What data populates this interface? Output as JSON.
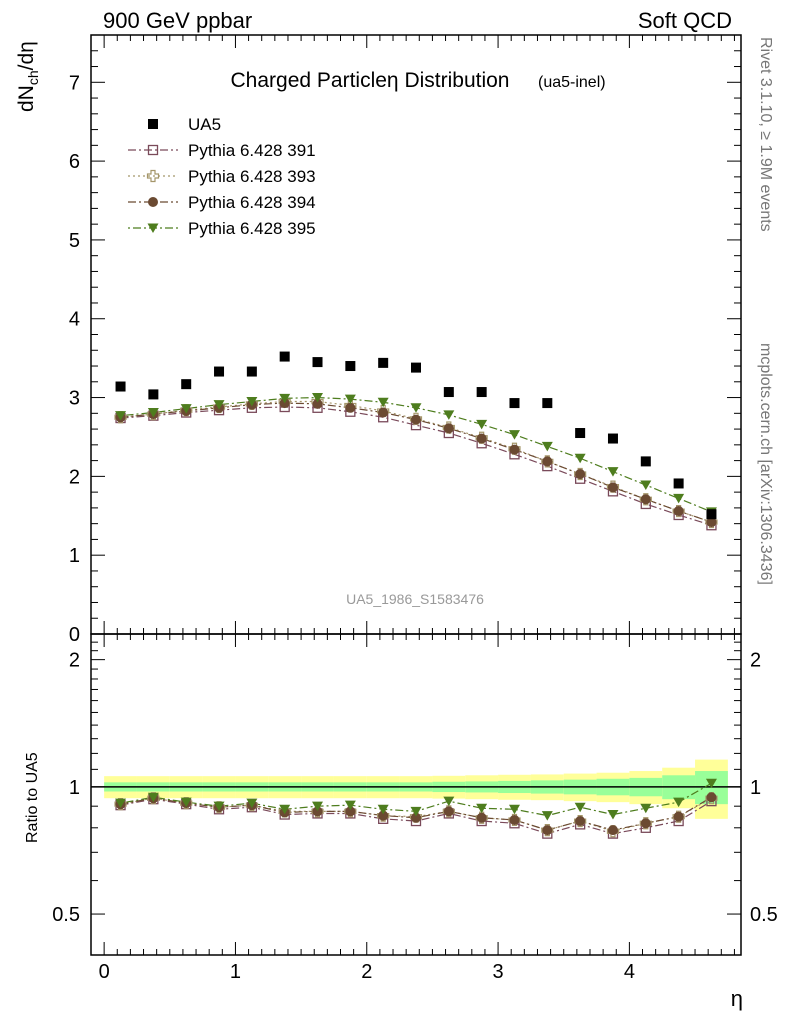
{
  "header": {
    "left": "900 GeV ppbar",
    "right": "Soft QCD"
  },
  "side": {
    "top": "Rivet 3.1.10, ≥ 1.9M events",
    "bottom": "mcplots.cern.ch [arXiv:1306.3436]"
  },
  "chart_data": {
    "type": "scatter",
    "title": "Charged Particleη Distribution",
    "subtitle": "(ua5-inel)",
    "watermark": "UA5_1986_S1583476",
    "xlabel": "η",
    "ylabel_main": "dN_ch/dη",
    "ylabel_ratio": "Ratio to UA5",
    "xlim": [
      -0.1,
      4.85
    ],
    "ylim_main": [
      0,
      7.6
    ],
    "ylim_ratio": [
      0.4,
      2.3
    ],
    "ratio_log_scale": true,
    "x_ticks": [
      "0",
      "1",
      "2",
      "3",
      "4"
    ],
    "y_ticks_main": [
      "0",
      "1",
      "2",
      "3",
      "4",
      "5",
      "6",
      "7"
    ],
    "y_ticks_ratio": [
      "0.5",
      "1",
      "2"
    ],
    "legend_position": "top-left",
    "x": [
      0.125,
      0.375,
      0.625,
      0.875,
      1.125,
      1.375,
      1.625,
      1.875,
      2.125,
      2.375,
      2.625,
      2.875,
      3.125,
      3.375,
      3.625,
      3.875,
      4.125,
      4.375,
      4.625
    ],
    "data_series": {
      "name": "UA5",
      "color": "#000000",
      "values": [
        3.14,
        3.04,
        3.17,
        3.33,
        3.33,
        3.52,
        3.45,
        3.4,
        3.44,
        3.38,
        3.07,
        3.07,
        2.93,
        2.93,
        2.55,
        2.48,
        2.19,
        1.91,
        1.52
      ]
    },
    "series": [
      {
        "name": "Pythia 6.428 391",
        "color": "#7a4a5a",
        "marker": "open-square",
        "values": [
          2.74,
          2.77,
          2.81,
          2.84,
          2.87,
          2.88,
          2.87,
          2.82,
          2.75,
          2.65,
          2.55,
          2.42,
          2.28,
          2.13,
          1.97,
          1.81,
          1.65,
          1.51,
          1.38
        ],
        "ratio": [
          0.905,
          0.935,
          0.91,
          0.885,
          0.895,
          0.86,
          0.865,
          0.865,
          0.84,
          0.83,
          0.865,
          0.83,
          0.82,
          0.775,
          0.815,
          0.775,
          0.8,
          0.83,
          0.925
        ]
      },
      {
        "name": "Pythia 6.428 393",
        "color": "#a5966a",
        "marker": "open-cross",
        "values": [
          2.75,
          2.79,
          2.84,
          2.88,
          2.92,
          2.95,
          2.95,
          2.9,
          2.83,
          2.73,
          2.62,
          2.49,
          2.35,
          2.19,
          2.03,
          1.87,
          1.71,
          1.56,
          1.42
        ],
        "ratio": [
          0.91,
          0.94,
          0.915,
          0.895,
          0.905,
          0.875,
          0.875,
          0.875,
          0.855,
          0.85,
          0.875,
          0.845,
          0.835,
          0.79,
          0.83,
          0.785,
          0.82,
          0.85,
          0.94
        ]
      },
      {
        "name": "Pythia 6.428 394",
        "color": "#6b4a32",
        "marker": "filled-circle",
        "values": [
          2.75,
          2.79,
          2.83,
          2.87,
          2.91,
          2.93,
          2.92,
          2.87,
          2.81,
          2.72,
          2.61,
          2.48,
          2.34,
          2.19,
          2.03,
          1.86,
          1.71,
          1.56,
          1.42
        ],
        "ratio": [
          0.91,
          0.94,
          0.915,
          0.895,
          0.905,
          0.87,
          0.875,
          0.875,
          0.855,
          0.845,
          0.875,
          0.845,
          0.835,
          0.79,
          0.83,
          0.79,
          0.82,
          0.85,
          0.945
        ]
      },
      {
        "name": "Pythia 6.428 395",
        "color": "#4e7d1e",
        "marker": "filled-triangle-down",
        "values": [
          2.77,
          2.81,
          2.86,
          2.91,
          2.95,
          2.99,
          3.0,
          2.98,
          2.94,
          2.87,
          2.78,
          2.66,
          2.53,
          2.38,
          2.23,
          2.06,
          1.89,
          1.72,
          1.55
        ],
        "ratio": [
          0.915,
          0.945,
          0.92,
          0.9,
          0.915,
          0.885,
          0.9,
          0.905,
          0.885,
          0.875,
          0.925,
          0.89,
          0.885,
          0.855,
          0.895,
          0.86,
          0.89,
          0.92,
          1.02
        ]
      }
    ],
    "ratio_band": {
      "yellow_half_width": [
        0.06,
        0.06,
        0.06,
        0.06,
        0.06,
        0.06,
        0.06,
        0.06,
        0.06,
        0.06,
        0.062,
        0.065,
        0.068,
        0.07,
        0.075,
        0.08,
        0.09,
        0.11,
        0.16
      ],
      "green_half_width": [
        0.025,
        0.025,
        0.025,
        0.025,
        0.025,
        0.025,
        0.025,
        0.025,
        0.025,
        0.025,
        0.028,
        0.03,
        0.033,
        0.036,
        0.04,
        0.045,
        0.05,
        0.065,
        0.09
      ]
    }
  }
}
